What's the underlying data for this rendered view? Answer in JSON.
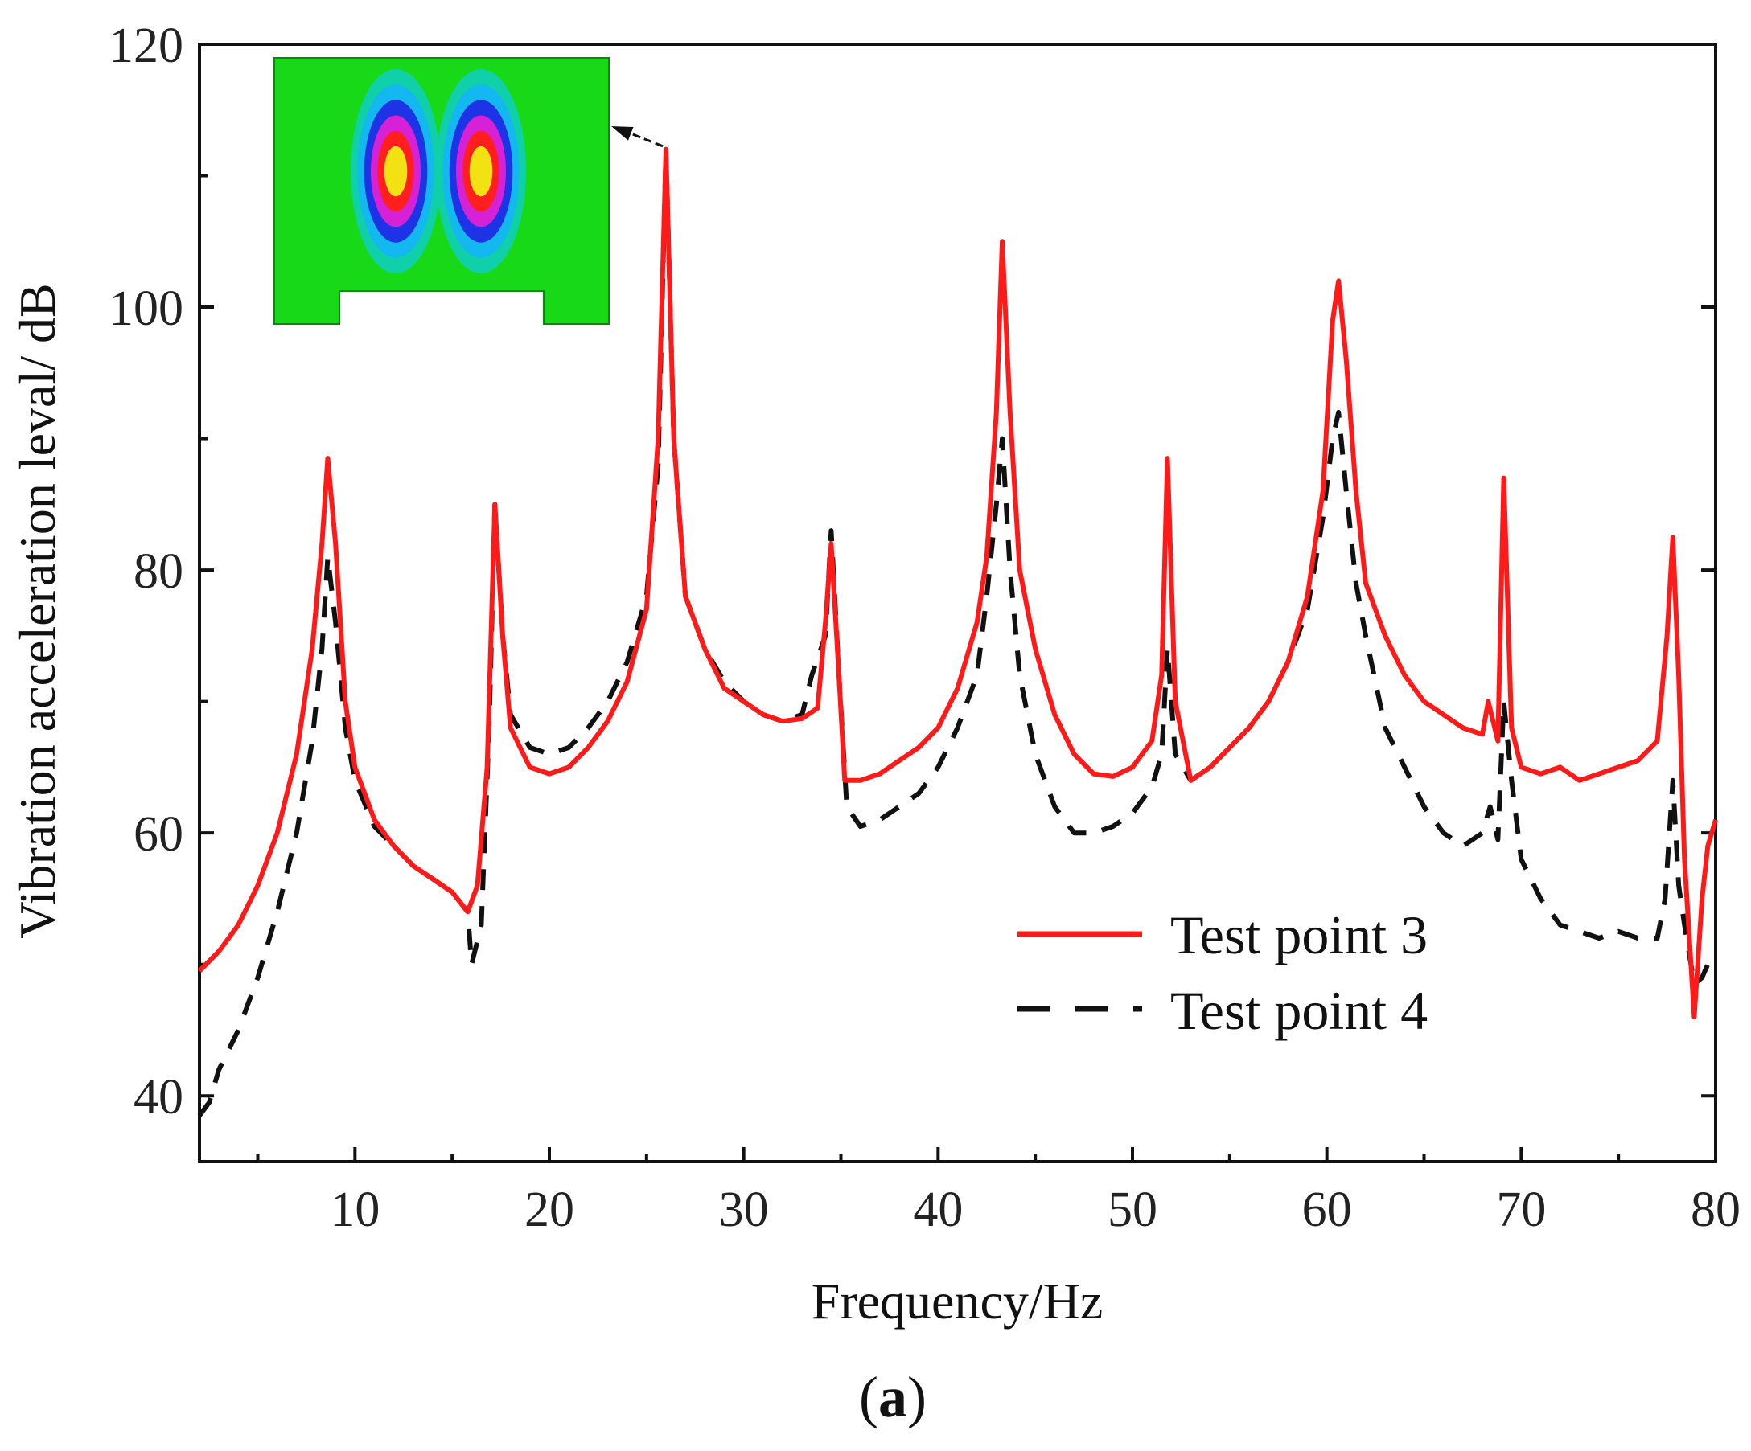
{
  "chart_data": {
    "type": "line",
    "xlabel": "Frequency/Hz",
    "ylabel": "Vibration acceleration leval/ dB",
    "xlim": [
      2,
      80
    ],
    "ylim": [
      35,
      120
    ],
    "xticks": [
      10,
      20,
      30,
      40,
      50,
      60,
      70,
      80
    ],
    "xticks_minor": [
      5,
      15,
      25,
      35,
      45,
      55,
      65,
      75
    ],
    "yticks": [
      40,
      60,
      80,
      100,
      120
    ],
    "yticks_minor": [
      50,
      70,
      90,
      110
    ],
    "legend_position": "lower-right",
    "caption_prefix": "(",
    "caption_letter": "a",
    "caption_suffix": ")",
    "inset": {
      "description_name": "mode-shape-contour",
      "points_to": {
        "x": 26,
        "y": 112
      },
      "colors": [
        "#18d918",
        "#0fd0a8",
        "#13b8f0",
        "#1d33e6",
        "#d621d6",
        "#ff1f1f",
        "#f2e214"
      ]
    },
    "series": [
      {
        "name": "Test point 3",
        "color": "#ff1a1a",
        "style": "solid",
        "points": [
          [
            2,
            49.5
          ],
          [
            3,
            51
          ],
          [
            4,
            53
          ],
          [
            5,
            56
          ],
          [
            6,
            60
          ],
          [
            7,
            66
          ],
          [
            7.8,
            74
          ],
          [
            8.3,
            82
          ],
          [
            8.6,
            88.5
          ],
          [
            9,
            82
          ],
          [
            9.5,
            70
          ],
          [
            10,
            65
          ],
          [
            11,
            61
          ],
          [
            12,
            59
          ],
          [
            13,
            57.5
          ],
          [
            14,
            56.5
          ],
          [
            15,
            55.5
          ],
          [
            15.8,
            54
          ],
          [
            16.3,
            56
          ],
          [
            16.8,
            65
          ],
          [
            17.2,
            85
          ],
          [
            17.6,
            75
          ],
          [
            18,
            68
          ],
          [
            19,
            65
          ],
          [
            20,
            64.5
          ],
          [
            21,
            65
          ],
          [
            22,
            66.5
          ],
          [
            23,
            68.5
          ],
          [
            24,
            71.5
          ],
          [
            25,
            77
          ],
          [
            25.6,
            90
          ],
          [
            26,
            112
          ],
          [
            26.4,
            90
          ],
          [
            27,
            78
          ],
          [
            28,
            74
          ],
          [
            29,
            71
          ],
          [
            30,
            70
          ],
          [
            31,
            69
          ],
          [
            32,
            68.5
          ],
          [
            33,
            68.7
          ],
          [
            33.8,
            69.5
          ],
          [
            34.2,
            76
          ],
          [
            34.5,
            82
          ],
          [
            34.9,
            72
          ],
          [
            35.2,
            64
          ],
          [
            36,
            64
          ],
          [
            37,
            64.5
          ],
          [
            38,
            65.5
          ],
          [
            39,
            66.5
          ],
          [
            40,
            68
          ],
          [
            41,
            71
          ],
          [
            42,
            76
          ],
          [
            42.5,
            81
          ],
          [
            43,
            92
          ],
          [
            43.3,
            105
          ],
          [
            43.7,
            92
          ],
          [
            44.2,
            80
          ],
          [
            45,
            74
          ],
          [
            46,
            69
          ],
          [
            47,
            66
          ],
          [
            48,
            64.5
          ],
          [
            49,
            64.3
          ],
          [
            50,
            65
          ],
          [
            51,
            67
          ],
          [
            51.5,
            72
          ],
          [
            51.8,
            88.5
          ],
          [
            52.2,
            70
          ],
          [
            53,
            64
          ],
          [
            54,
            65
          ],
          [
            55,
            66.5
          ],
          [
            56,
            68
          ],
          [
            57,
            70
          ],
          [
            58,
            73
          ],
          [
            59,
            78
          ],
          [
            59.8,
            86
          ],
          [
            60.3,
            99
          ],
          [
            60.6,
            102
          ],
          [
            61,
            96
          ],
          [
            61.5,
            86
          ],
          [
            62,
            79
          ],
          [
            63,
            75
          ],
          [
            64,
            72
          ],
          [
            65,
            70
          ],
          [
            66,
            69
          ],
          [
            67,
            68
          ],
          [
            68,
            67.5
          ],
          [
            68.3,
            70
          ],
          [
            68.8,
            67
          ],
          [
            69.1,
            87
          ],
          [
            69.5,
            68
          ],
          [
            70,
            65
          ],
          [
            71,
            64.5
          ],
          [
            72,
            65
          ],
          [
            73,
            64
          ],
          [
            74,
            64.5
          ],
          [
            75,
            65
          ],
          [
            76,
            65.5
          ],
          [
            77,
            67
          ],
          [
            77.5,
            75
          ],
          [
            77.8,
            82.5
          ],
          [
            78.1,
            72
          ],
          [
            78.4,
            58
          ],
          [
            78.9,
            46
          ],
          [
            79.3,
            55
          ],
          [
            79.6,
            59
          ],
          [
            80,
            61
          ]
        ]
      },
      {
        "name": "Test point 4",
        "color": "#111111",
        "style": "dashed",
        "points": [
          [
            2,
            38.5
          ],
          [
            2.5,
            39.5
          ],
          [
            3,
            42
          ],
          [
            4,
            45
          ],
          [
            5,
            49
          ],
          [
            6,
            54
          ],
          [
            7,
            60
          ],
          [
            7.8,
            67
          ],
          [
            8.3,
            74
          ],
          [
            8.6,
            81
          ],
          [
            9,
            76
          ],
          [
            9.5,
            68
          ],
          [
            10,
            64
          ],
          [
            11,
            60.5
          ],
          [
            12,
            59
          ],
          [
            13,
            57.5
          ],
          [
            14,
            56.5
          ],
          [
            15,
            55.5
          ],
          [
            15.8,
            54
          ],
          [
            16,
            50
          ],
          [
            16.5,
            53
          ],
          [
            16.9,
            68
          ],
          [
            17.2,
            85
          ],
          [
            17.6,
            75
          ],
          [
            18,
            69
          ],
          [
            19,
            66.5
          ],
          [
            20,
            66
          ],
          [
            21,
            66.5
          ],
          [
            22,
            68
          ],
          [
            23,
            70
          ],
          [
            24,
            73
          ],
          [
            25,
            78
          ],
          [
            25.6,
            88
          ],
          [
            26,
            112
          ],
          [
            26.4,
            90
          ],
          [
            27,
            78
          ],
          [
            28,
            74
          ],
          [
            29,
            71.5
          ],
          [
            30,
            70
          ],
          [
            31,
            69
          ],
          [
            32,
            68.5
          ],
          [
            33,
            69
          ],
          [
            33.5,
            72
          ],
          [
            34.2,
            75
          ],
          [
            34.5,
            83
          ],
          [
            34.9,
            72
          ],
          [
            35.3,
            62
          ],
          [
            36,
            60.5
          ],
          [
            37,
            61
          ],
          [
            38,
            62
          ],
          [
            39,
            63
          ],
          [
            40,
            65
          ],
          [
            41,
            68
          ],
          [
            42,
            72
          ],
          [
            42.5,
            78
          ],
          [
            43,
            85
          ],
          [
            43.3,
            90
          ],
          [
            43.7,
            80
          ],
          [
            44.2,
            72
          ],
          [
            45,
            66
          ],
          [
            46,
            62
          ],
          [
            47,
            60
          ],
          [
            48,
            60
          ],
          [
            49,
            60.5
          ],
          [
            50,
            61.5
          ],
          [
            51,
            63.5
          ],
          [
            51.5,
            66
          ],
          [
            51.8,
            74
          ],
          [
            52.2,
            66
          ],
          [
            53,
            64
          ],
          [
            54,
            65
          ],
          [
            55,
            66.5
          ],
          [
            56,
            68
          ],
          [
            57,
            70
          ],
          [
            58,
            73
          ],
          [
            59,
            77
          ],
          [
            59.8,
            84
          ],
          [
            60.3,
            90
          ],
          [
            60.6,
            92
          ],
          [
            61,
            86
          ],
          [
            61.5,
            79
          ],
          [
            62,
            75
          ],
          [
            63,
            68
          ],
          [
            64,
            65
          ],
          [
            65,
            62
          ],
          [
            66,
            60
          ],
          [
            67,
            59
          ],
          [
            68,
            60
          ],
          [
            68.4,
            62
          ],
          [
            68.8,
            59.5
          ],
          [
            69.1,
            70
          ],
          [
            69.5,
            64
          ],
          [
            70,
            58
          ],
          [
            71,
            55
          ],
          [
            72,
            53
          ],
          [
            73,
            52.5
          ],
          [
            74,
            52
          ],
          [
            75,
            52.5
          ],
          [
            76,
            52
          ],
          [
            77,
            52
          ],
          [
            77.4,
            55
          ],
          [
            77.8,
            64
          ],
          [
            78.1,
            56
          ],
          [
            78.4,
            53
          ],
          [
            78.9,
            48.5
          ],
          [
            79.3,
            49
          ],
          [
            79.6,
            50
          ],
          [
            80,
            51
          ]
        ]
      }
    ]
  }
}
